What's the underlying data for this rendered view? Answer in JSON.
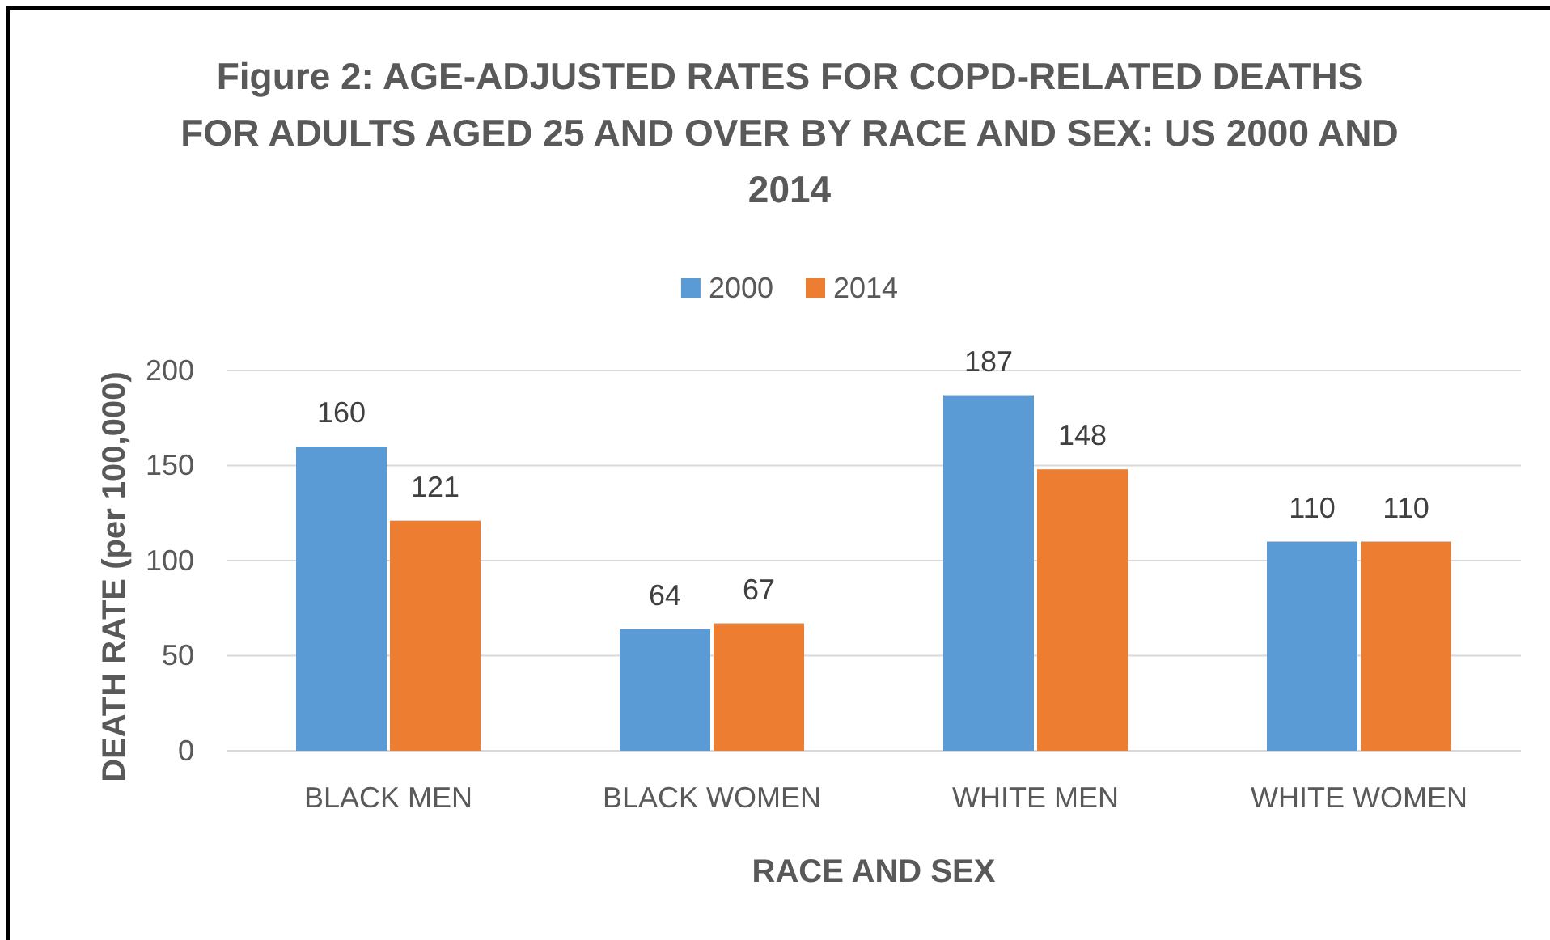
{
  "chart_data": {
    "type": "bar",
    "title": "Figure 2: AGE-ADJUSTED RATES FOR COPD-RELATED DEATHS FOR ADULTS AGED 25 AND OVER BY RACE AND SEX: US 2000 AND 2014",
    "xlabel": "RACE AND SEX",
    "ylabel": "DEATH RATE (per 100,000)",
    "categories": [
      "BLACK MEN",
      "BLACK WOMEN",
      "WHITE MEN",
      "WHITE WOMEN"
    ],
    "series": [
      {
        "name": "2000",
        "color": "#5b9bd5",
        "values": [
          160,
          64,
          187,
          110
        ]
      },
      {
        "name": "2014",
        "color": "#ed7d31",
        "values": [
          121,
          67,
          148,
          110
        ]
      }
    ],
    "ylim": [
      0,
      200
    ],
    "yticks": [
      0,
      50,
      100,
      150,
      200
    ],
    "grid": "y",
    "legend": "top",
    "data_labels": true
  }
}
